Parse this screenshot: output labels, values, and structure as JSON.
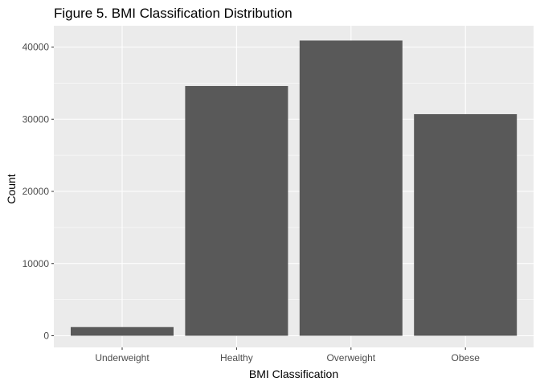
{
  "colors": {
    "panel_bg": "#EBEBEB",
    "grid_major": "#FFFFFF",
    "bar_fill": "#595959",
    "tick_label": "#4D4D4D",
    "text": "#000000"
  },
  "chart_data": {
    "type": "bar",
    "title": "Figure 5. BMI Classification Distribution",
    "xlabel": "BMI Classification",
    "ylabel": "Count",
    "categories": [
      "Underweight",
      "Healthy",
      "Overweight",
      "Obese"
    ],
    "values": [
      1200,
      34600,
      40900,
      30700
    ],
    "ylim": [
      0,
      42000
    ],
    "yticks": [
      0,
      10000,
      20000,
      30000,
      40000
    ],
    "ytick_labels": [
      "0",
      "10000",
      "20000",
      "30000",
      "40000"
    ],
    "grid": true,
    "legend": "none"
  }
}
